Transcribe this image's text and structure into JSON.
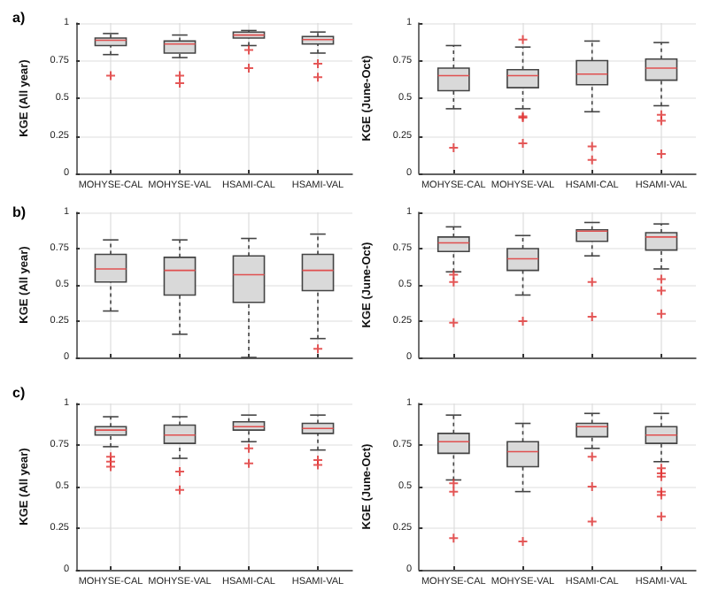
{
  "chart_data": [
    {
      "type": "box",
      "title": "a)",
      "ylabel": "KGE (All year)",
      "categories": [
        "MOHYSE-CAL",
        "MOHYSE-VAL",
        "HSAMI-CAL",
        "HSAMI-VAL"
      ],
      "color": "#d9d9d9",
      "ylim": [
        0,
        1
      ],
      "yticks": [
        0,
        0.25,
        0.5,
        0.75,
        1
      ],
      "grid": true,
      "boxes": [
        {
          "low": 0.79,
          "q1": 0.85,
          "median": 0.885,
          "q3": 0.9,
          "high": 0.93,
          "outliers": [
            0.65
          ]
        },
        {
          "low": 0.77,
          "q1": 0.8,
          "median": 0.86,
          "q3": 0.88,
          "high": 0.92,
          "outliers": [
            0.65,
            0.6
          ]
        },
        {
          "low": 0.85,
          "q1": 0.9,
          "median": 0.92,
          "q3": 0.94,
          "high": 0.95,
          "outliers": [
            0.82,
            0.7
          ]
        },
        {
          "low": 0.8,
          "q1": 0.86,
          "median": 0.89,
          "q3": 0.91,
          "high": 0.94,
          "outliers": [
            0.73,
            0.64
          ]
        }
      ]
    },
    {
      "type": "box",
      "ylabel": "KGE (June-Oct)",
      "categories": [
        "MOHYSE-CAL",
        "MOHYSE-VAL",
        "HSAMI-CAL",
        "HSAMI-VAL"
      ],
      "color": "#d9d9d9",
      "ylim": [
        0,
        1
      ],
      "yticks": [
        0,
        0.25,
        0.5,
        0.75,
        1
      ],
      "grid": true,
      "boxes": [
        {
          "low": 0.43,
          "q1": 0.55,
          "median": 0.65,
          "q3": 0.7,
          "high": 0.85,
          "outliers": [
            0.17
          ]
        },
        {
          "low": 0.43,
          "q1": 0.57,
          "median": 0.65,
          "q3": 0.69,
          "high": 0.84,
          "outliers": [
            0.89,
            0.38,
            0.37,
            0.2
          ]
        },
        {
          "low": 0.41,
          "q1": 0.59,
          "median": 0.66,
          "q3": 0.75,
          "high": 0.88,
          "outliers": [
            0.18,
            0.09
          ]
        },
        {
          "low": 0.45,
          "q1": 0.62,
          "median": 0.7,
          "q3": 0.76,
          "high": 0.87,
          "outliers": [
            0.39,
            0.35,
            0.13
          ]
        }
      ]
    },
    {
      "type": "box",
      "title": "b)",
      "ylabel": "KGE (All year)",
      "categories": [
        null,
        null,
        null,
        null
      ],
      "color": "#d9d9d9",
      "ylim": [
        0,
        1
      ],
      "yticks": [
        0,
        0.25,
        0.5,
        0.75,
        1
      ],
      "grid": true,
      "boxes": [
        {
          "low": 0.32,
          "q1": 0.52,
          "median": 0.61,
          "q3": 0.71,
          "high": 0.81
        },
        {
          "low": 0.16,
          "q1": 0.43,
          "median": 0.6,
          "q3": 0.69,
          "high": 0.81
        },
        {
          "low": 0,
          "q1": 0.38,
          "median": 0.57,
          "q3": 0.7,
          "high": 0.82
        },
        {
          "low": 0.13,
          "q1": 0.46,
          "median": 0.6,
          "q3": 0.71,
          "high": 0.85,
          "outliers": [
            0.06
          ]
        }
      ]
    },
    {
      "type": "box",
      "ylabel": "KGE (June-Oct)",
      "categories": [
        null,
        null,
        null,
        null
      ],
      "color": "#d9d9d9",
      "ylim": [
        0,
        1
      ],
      "yticks": [
        0,
        0.25,
        0.5,
        0.75,
        1
      ],
      "grid": true,
      "boxes": [
        {
          "low": 0.59,
          "q1": 0.73,
          "median": 0.79,
          "q3": 0.83,
          "high": 0.9,
          "outliers": [
            0.57,
            0.52,
            0.24
          ]
        },
        {
          "low": 0.43,
          "q1": 0.6,
          "median": 0.68,
          "q3": 0.75,
          "high": 0.84,
          "outliers": [
            0.25
          ]
        },
        {
          "low": 0.7,
          "q1": 0.8,
          "median": 0.87,
          "q3": 0.88,
          "high": 0.93,
          "outliers": [
            0.52,
            0.28
          ]
        },
        {
          "low": 0.61,
          "q1": 0.74,
          "median": 0.83,
          "q3": 0.86,
          "high": 0.92,
          "outliers": [
            0.54,
            0.46,
            0.3
          ]
        }
      ]
    },
    {
      "type": "box",
      "title": "c)",
      "ylabel": "KGE (All year)",
      "categories": [
        "MOHYSE-CAL",
        "MOHYSE-VAL",
        "HSAMI-CAL",
        "HSAMI-VAL"
      ],
      "color": "#d9d9d9",
      "ylim": [
        0,
        1
      ],
      "yticks": [
        0,
        0.25,
        0.5,
        0.75,
        1
      ],
      "grid": true,
      "boxes": [
        {
          "low": 0.74,
          "q1": 0.81,
          "median": 0.84,
          "q3": 0.86,
          "high": 0.92,
          "outliers": [
            0.68,
            0.65,
            0.62
          ]
        },
        {
          "low": 0.67,
          "q1": 0.76,
          "median": 0.81,
          "q3": 0.87,
          "high": 0.92,
          "outliers": [
            0.59,
            0.48
          ]
        },
        {
          "low": 0.77,
          "q1": 0.84,
          "median": 0.86,
          "q3": 0.89,
          "high": 0.93,
          "outliers": [
            0.73,
            0.64
          ]
        },
        {
          "low": 0.72,
          "q1": 0.82,
          "median": 0.85,
          "q3": 0.88,
          "high": 0.93,
          "outliers": [
            0.66,
            0.63
          ]
        }
      ]
    },
    {
      "type": "box",
      "ylabel": "KGE (June-Oct)",
      "categories": [
        "MOHYSE-CAL",
        "MOHYSE-VAL",
        "HSAMI-CAL",
        "HSAMI-VAL"
      ],
      "color": "#d9d9d9",
      "ylim": [
        0,
        1
      ],
      "yticks": [
        0,
        0.25,
        0.5,
        0.75,
        1
      ],
      "grid": true,
      "boxes": [
        {
          "low": 0.54,
          "q1": 0.7,
          "median": 0.77,
          "q3": 0.82,
          "high": 0.93,
          "outliers": [
            0.52,
            0.47,
            0.19
          ]
        },
        {
          "low": 0.47,
          "q1": 0.62,
          "median": 0.71,
          "q3": 0.77,
          "high": 0.88,
          "outliers": [
            0.17
          ]
        },
        {
          "low": 0.73,
          "q1": 0.8,
          "median": 0.86,
          "q3": 0.88,
          "high": 0.94,
          "outliers": [
            0.68,
            0.5,
            0.29
          ]
        },
        {
          "low": 0.65,
          "q1": 0.76,
          "median": 0.81,
          "q3": 0.86,
          "high": 0.94,
          "outliers": [
            0.61,
            0.58,
            0.56,
            0.47,
            0.45,
            0.32
          ]
        }
      ]
    }
  ]
}
